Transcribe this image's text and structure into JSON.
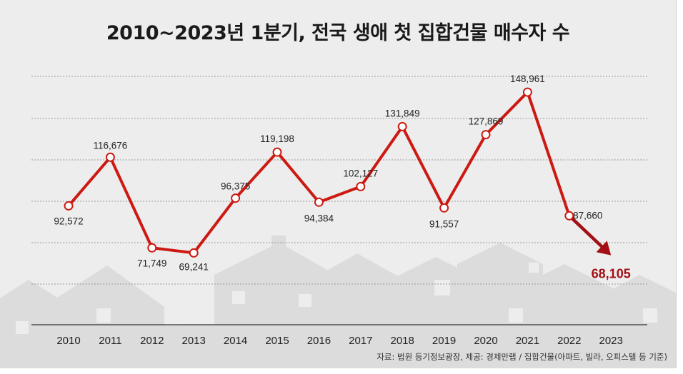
{
  "chart_data": {
    "type": "line",
    "title": "2010~2023년 1분기, 전국 생애 첫 집합건물 매수자 수",
    "categories": [
      "2010",
      "2011",
      "2012",
      "2013",
      "2014",
      "2015",
      "2016",
      "2017",
      "2018",
      "2019",
      "2020",
      "2021",
      "2022",
      "2023"
    ],
    "series": [
      {
        "name": "생애 첫 집합건물 매수자 수",
        "values": [
          92572,
          116676,
          71749,
          69241,
          96375,
          119198,
          94384,
          102127,
          131849,
          91557,
          127869,
          148961,
          87660,
          68105
        ],
        "labels": [
          "92,572",
          "116,676",
          "71,749",
          "69,241",
          "96,375",
          "119,198",
          "94,384",
          "102,127",
          "131,849",
          "91,557",
          "127,869",
          "148,961",
          "87,660",
          "68,105"
        ]
      }
    ],
    "highlight": {
      "index": 13,
      "color": "#a30f14"
    },
    "line_color": "#cc1a12",
    "ylim": [
      40000,
      155000
    ],
    "grid": true,
    "xlabel": "",
    "ylabel": "",
    "source": "자료: 법원 등기정보광장, 제공: 경제만랩 / 집합건물(아파트, 빌라, 오피스텔 등 기준)"
  }
}
